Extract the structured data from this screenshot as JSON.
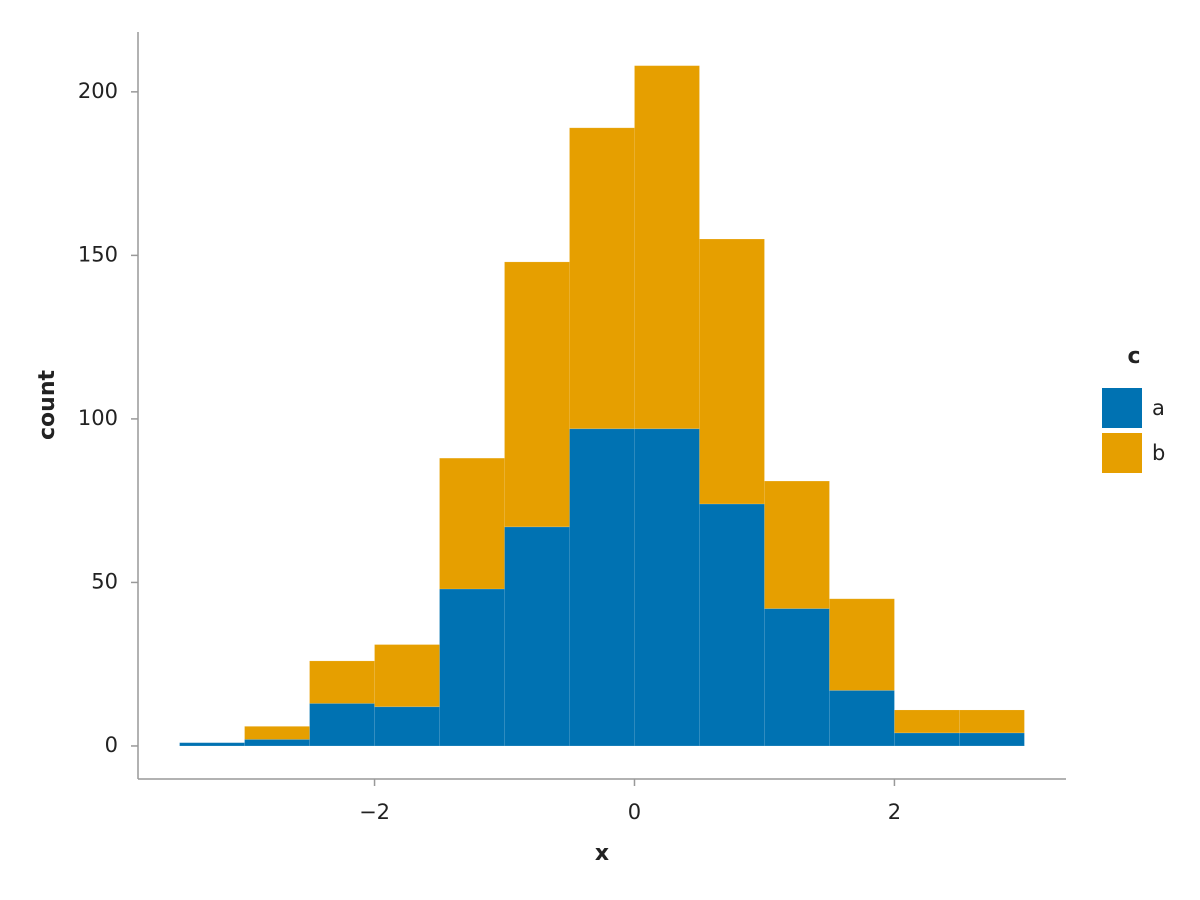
{
  "chart_data": {
    "type": "histogram",
    "stacked": true,
    "x_label": "x",
    "y_label": "count",
    "bins": [
      -3.5,
      -3,
      -2.5,
      -2,
      -1.5,
      -1,
      -0.5,
      0,
      0.5,
      1,
      1.5,
      2,
      2.5,
      3
    ],
    "series": [
      {
        "name": "a",
        "color": "#0072b2",
        "values": [
          1,
          2,
          13,
          12,
          48,
          67,
          97,
          97,
          74,
          42,
          17,
          4,
          4
        ]
      },
      {
        "name": "b",
        "color": "#e69f00",
        "values": [
          0,
          4,
          13,
          19,
          40,
          81,
          92,
          111,
          81,
          39,
          28,
          7,
          7
        ]
      }
    ],
    "legend_title": "c",
    "legend_position": "right",
    "xlim": [
      -3.82,
      3.32
    ],
    "ylim": [
      -10.1,
      218.3
    ],
    "xticks": [
      {
        "value": -2,
        "label": "−2"
      },
      0,
      2
    ],
    "yticks": [
      0,
      50,
      100,
      150,
      200
    ],
    "grid": false
  }
}
